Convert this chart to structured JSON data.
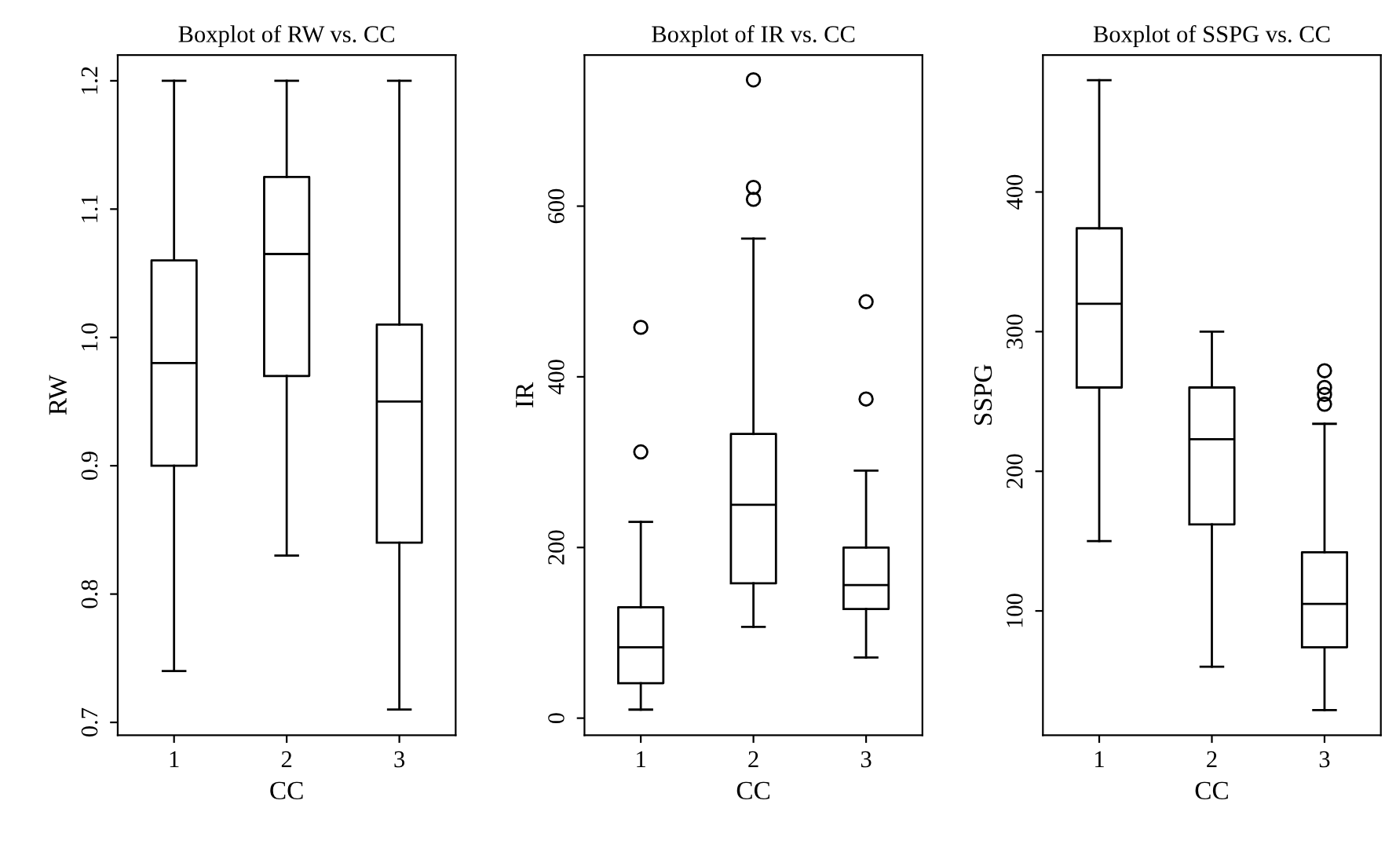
{
  "chart_data": [
    {
      "type": "box",
      "title": "Boxplot of RW vs. CC",
      "xlabel": "CC",
      "ylabel": "RW",
      "categories": [
        "1",
        "2",
        "3"
      ],
      "boxes": [
        {
          "low": 0.74,
          "q1": 0.9,
          "median": 0.98,
          "q3": 1.06,
          "high": 1.2
        },
        {
          "low": 0.83,
          "q1": 0.97,
          "median": 1.065,
          "q3": 1.125,
          "high": 1.2
        },
        {
          "low": 0.71,
          "q1": 0.84,
          "median": 0.95,
          "q3": 1.01,
          "high": 1.2
        }
      ],
      "ylim": [
        0.69,
        1.22
      ],
      "yticks": [
        0.7,
        0.8,
        0.9,
        {
          "value": 1.0,
          "label": "1.0"
        },
        1.1,
        1.2
      ],
      "grid": false
    },
    {
      "type": "box",
      "title": "Boxplot of IR vs. CC",
      "xlabel": "CC",
      "ylabel": "IR",
      "categories": [
        "1",
        "2",
        "3"
      ],
      "boxes": [
        {
          "low": 10,
          "q1": 41,
          "median": 83,
          "q3": 130,
          "high": 230,
          "outliers": [
            312,
            458
          ]
        },
        {
          "low": 107,
          "q1": 158,
          "median": 250,
          "q3": 333,
          "high": 562,
          "outliers": [
            608,
            622,
            748
          ]
        },
        {
          "low": 71,
          "q1": 128,
          "median": 156,
          "q3": 200,
          "high": 290,
          "outliers": [
            374,
            488
          ]
        }
      ],
      "ylim": [
        -20,
        777
      ],
      "yticks": [
        0,
        200,
        400,
        600
      ],
      "grid": false
    },
    {
      "type": "box",
      "title": "Boxplot of SSPG vs. CC",
      "xlabel": "CC",
      "ylabel": "SSPG",
      "categories": [
        "1",
        "2",
        "3"
      ],
      "boxes": [
        {
          "low": 150,
          "q1": 260,
          "median": 320,
          "q3": 374,
          "high": 480
        },
        {
          "low": 60,
          "q1": 162,
          "median": 223,
          "q3": 260,
          "high": 300
        },
        {
          "low": 29,
          "q1": 74,
          "median": 105,
          "q3": 142,
          "high": 234,
          "outliers": [
            248,
            255,
            260,
            272
          ]
        }
      ],
      "ylim": [
        11,
        498
      ],
      "yticks": [
        100,
        200,
        300,
        400
      ],
      "grid": false
    }
  ]
}
